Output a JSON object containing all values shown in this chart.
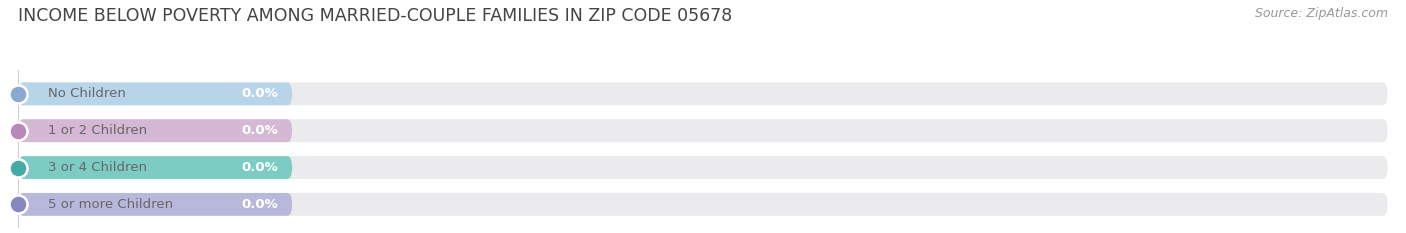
{
  "title": "INCOME BELOW POVERTY AMONG MARRIED-COUPLE FAMILIES IN ZIP CODE 05678",
  "source": "Source: ZipAtlas.com",
  "categories": [
    "No Children",
    "1 or 2 Children",
    "3 or 4 Children",
    "5 or more Children"
  ],
  "values": [
    0.0,
    0.0,
    0.0,
    0.0
  ],
  "bar_colors": [
    "#b8d4e8",
    "#d4b8d4",
    "#7dccc4",
    "#b8b8dc"
  ],
  "dot_colors": [
    "#88aad0",
    "#b888b8",
    "#44aaa4",
    "#8888c0"
  ],
  "bar_bg_color": "#ebebed",
  "text_color": "#666666",
  "title_color": "#444444",
  "source_color": "#999999",
  "value_text_color": "#ffffff",
  "xlim_max": 100,
  "colored_bar_pct": 20,
  "bar_height": 0.62,
  "background_color": "#ffffff",
  "title_fontsize": 12.5,
  "label_fontsize": 9.5,
  "value_fontsize": 9.5,
  "tick_fontsize": 9,
  "source_fontsize": 9,
  "rounding_size": 0.35
}
